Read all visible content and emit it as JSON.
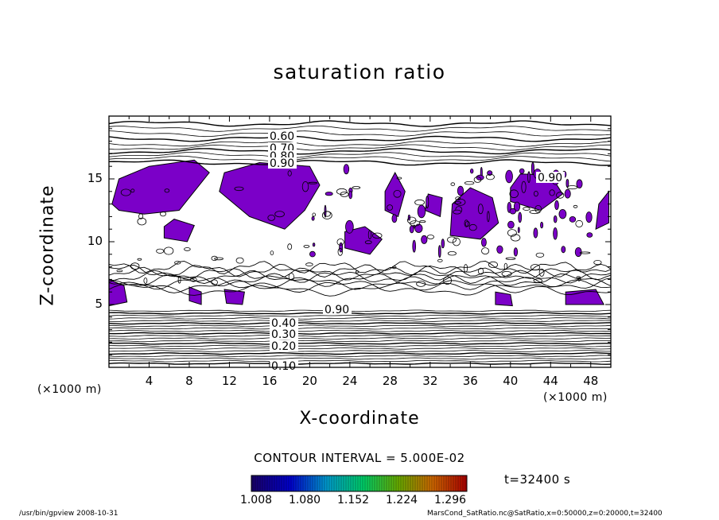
{
  "chart_data": {
    "type": "heatmap",
    "title": "saturation ratio",
    "xlabel": "X-coordinate",
    "ylabel": "Z-coordinate",
    "x_unit": "(×1000 m)",
    "y_unit": "(×1000 m)",
    "xlim": [
      0,
      50
    ],
    "ylim": [
      0,
      20
    ],
    "x_ticks": [
      "4",
      "8",
      "12",
      "16",
      "20",
      "24",
      "28",
      "32",
      "36",
      "40",
      "44",
      "48"
    ],
    "y_ticks": [
      "5",
      "10",
      "15"
    ],
    "contour_labels": [
      "0.60",
      "0.70",
      "0.80",
      "0.90",
      "0.90",
      "0.90",
      "0.40",
      "0.30",
      "0.20",
      "0.10"
    ],
    "contour_interval_text": "CONTOUR INTERVAL = 5.000E-02",
    "colorbar": {
      "ticks": [
        "1.008",
        "1.080",
        "1.152",
        "1.224",
        "1.296"
      ],
      "colors": [
        "#1a0066",
        "#0000cc",
        "#0099cc",
        "#00cc66",
        "#66aa00",
        "#cc6600",
        "#aa0000"
      ]
    },
    "shading_color": "#7b00c8",
    "time_label": "t=32400 s",
    "grid": false
  },
  "footer": {
    "left": "/usr/bin/gpview  2008-10-31",
    "right": "MarsCond_SatRatio.nc@SatRatio,x=0:50000,z=0:20000,t=32400"
  }
}
